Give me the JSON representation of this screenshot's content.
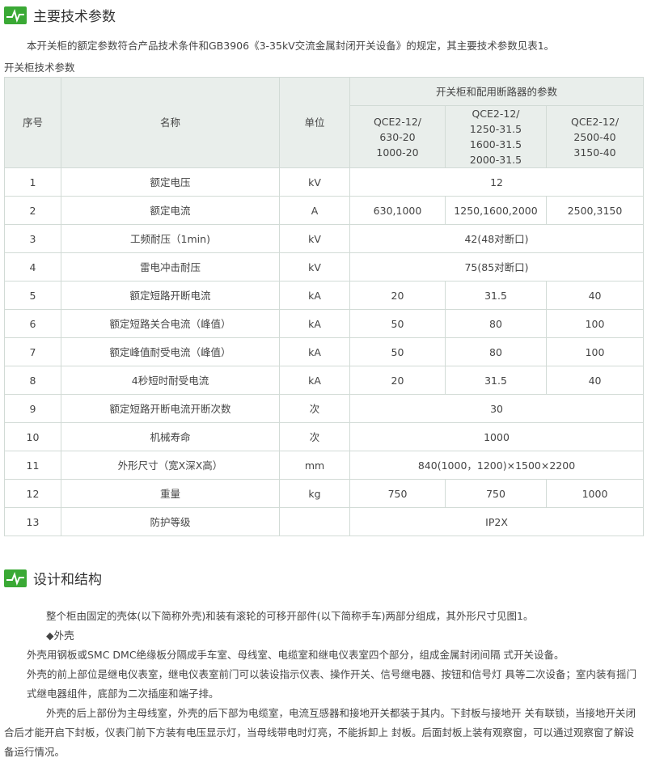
{
  "section1": {
    "title": "主要技术参数",
    "intro": "本开关柜的额定参数符合产品技术条件和GB3906《3-35kV交流金属封闭开关设备》的规定，其主要技术参数见表1。",
    "table_caption": "开关柜技术参数"
  },
  "table": {
    "headers": {
      "no": "序号",
      "name": "名称",
      "unit": "单位",
      "group": "开关柜和配用断路器的参数",
      "models": [
        [
          "QCE2-12/",
          "630-20",
          "1000-20"
        ],
        [
          "QCE2-12/",
          "1250-31.5",
          "1600-31.5",
          "2000-31.5"
        ],
        [
          "QCE2-12/",
          "2500-40",
          "3150-40"
        ]
      ]
    },
    "rows": [
      {
        "no": "1",
        "name": "额定电压",
        "unit": "kV",
        "values": [
          "12"
        ]
      },
      {
        "no": "2",
        "name": "额定电流",
        "unit": "A",
        "values": [
          "630,1000",
          "1250,1600,2000",
          "2500,3150"
        ]
      },
      {
        "no": "3",
        "name": "工频耐压（1min)",
        "unit": "kV",
        "values": [
          "42(48对断口)"
        ]
      },
      {
        "no": "4",
        "name": "雷电冲击耐压",
        "unit": "kV",
        "values": [
          "75(85对断口)"
        ]
      },
      {
        "no": "5",
        "name": "额定短路开断电流",
        "unit": "kA",
        "values": [
          "20",
          "31.5",
          "40"
        ]
      },
      {
        "no": "6",
        "name": "额定短路关合电流（峰值）",
        "unit": "kA",
        "values": [
          "50",
          "80",
          "100"
        ]
      },
      {
        "no": "7",
        "name": "额定峰值耐受电流（峰值）",
        "unit": "kA",
        "values": [
          "50",
          "80",
          "100"
        ]
      },
      {
        "no": "8",
        "name": "4秒短时耐受电流",
        "unit": "kA",
        "values": [
          "20",
          "31.5",
          "40"
        ]
      },
      {
        "no": "9",
        "name": "额定短路开断电流开断次数",
        "unit": "次",
        "values": [
          "30"
        ]
      },
      {
        "no": "10",
        "name": "机械寿命",
        "unit": "次",
        "values": [
          "1000"
        ]
      },
      {
        "no": "11",
        "name": "外形尺寸（宽X深X高）",
        "unit": "mm",
        "values": [
          "840(1000，1200)×1500×2200"
        ]
      },
      {
        "no": "12",
        "name": "重量",
        "unit": "kg",
        "values": [
          "750",
          "750",
          "1000"
        ]
      },
      {
        "no": "13",
        "name": "防护等级",
        "unit": "",
        "values": [
          "IP2X"
        ]
      }
    ]
  },
  "section2": {
    "title": "设计和结构",
    "paragraphs": [
      "整个柜由固定的壳体(以下简称外壳)和装有滚轮的可移开部件(以下简称手车)两部分组成，其外形尺寸见图1。",
      "◆外壳",
      "外壳用钢板或SMC DMC绝缘板分隔成手车室、母线室、电缆室和继电仪表室四个部分，组成金属封闭间隔 式开关设备。",
      "外壳的前上部位是继电仪表室，继电仪表室前门可以装设指示仪表、操作开关、信号继电器、按钮和信号灯 具等二次设备；室内装有摇门式继电器组件，底部为二次插座和端子排。",
      "外壳的后上部份为主母线室，外壳的后下部为电缆室，电流互感器和接地开关都装于其内。下封板与接地开 关有联锁，当接地开关闭合后才能开启下封板，仪表门前下方装有电压显示灯，当母线带电时灯亮，不能拆卸上 封板。后面封板上装有观察窗，可以通过观察窗了解设备运行情况。"
    ]
  }
}
